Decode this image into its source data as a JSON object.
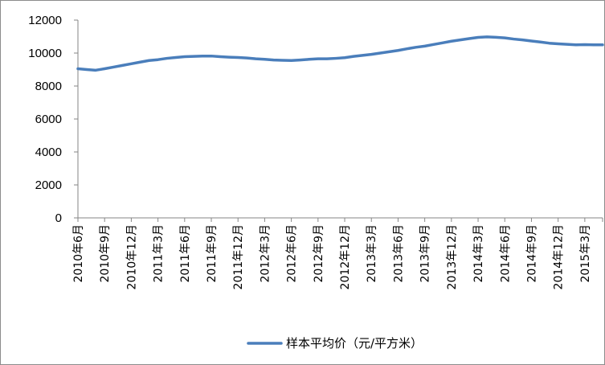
{
  "chart_data": {
    "type": "line",
    "title": "",
    "xlabel": "",
    "ylabel": "",
    "ylim": [
      0,
      12000
    ],
    "yticks": [
      0,
      2000,
      4000,
      6000,
      8000,
      10000,
      12000
    ],
    "grid": false,
    "legend_position": "bottom",
    "x_labels": [
      "2010年6月",
      "2010年9月",
      "2010年12月",
      "2011年3月",
      "2011年6月",
      "2011年9月",
      "2011年12月",
      "2012年3月",
      "2012年6月",
      "2012年9月",
      "2012年12月",
      "2013年3月",
      "2013年6月",
      "2013年9月",
      "2013年12月",
      "2014年3月",
      "2014年6月",
      "2014年9月",
      "2014年12月",
      "2015年3月"
    ],
    "x": [
      "2010-06",
      "2010-07",
      "2010-08",
      "2010-09",
      "2010-10",
      "2010-11",
      "2010-12",
      "2011-01",
      "2011-02",
      "2011-03",
      "2011-04",
      "2011-05",
      "2011-06",
      "2011-07",
      "2011-08",
      "2011-09",
      "2011-10",
      "2011-11",
      "2011-12",
      "2012-01",
      "2012-02",
      "2012-03",
      "2012-04",
      "2012-05",
      "2012-06",
      "2012-07",
      "2012-08",
      "2012-09",
      "2012-10",
      "2012-11",
      "2012-12",
      "2013-01",
      "2013-02",
      "2013-03",
      "2013-04",
      "2013-05",
      "2013-06",
      "2013-07",
      "2013-08",
      "2013-09",
      "2013-10",
      "2013-11",
      "2013-12",
      "2014-01",
      "2014-02",
      "2014-03",
      "2014-04",
      "2014-05",
      "2014-06",
      "2014-07",
      "2014-08",
      "2014-09",
      "2014-10",
      "2014-11",
      "2014-12",
      "2015-01",
      "2015-02",
      "2015-03",
      "2015-04",
      "2015-05"
    ],
    "series": [
      {
        "name": "样本平均价（元/平方米）",
        "color": "#4a7ebb",
        "values": [
          9050,
          9000,
          8960,
          9050,
          9150,
          9250,
          9350,
          9450,
          9550,
          9600,
          9680,
          9730,
          9780,
          9800,
          9820,
          9820,
          9780,
          9750,
          9730,
          9700,
          9650,
          9620,
          9580,
          9560,
          9550,
          9580,
          9620,
          9650,
          9650,
          9680,
          9720,
          9800,
          9860,
          9920,
          10000,
          10080,
          10160,
          10260,
          10350,
          10420,
          10520,
          10620,
          10720,
          10800,
          10880,
          10950,
          10980,
          10960,
          10920,
          10850,
          10800,
          10730,
          10670,
          10600,
          10560,
          10530,
          10500,
          10510,
          10500,
          10500
        ]
      }
    ]
  }
}
